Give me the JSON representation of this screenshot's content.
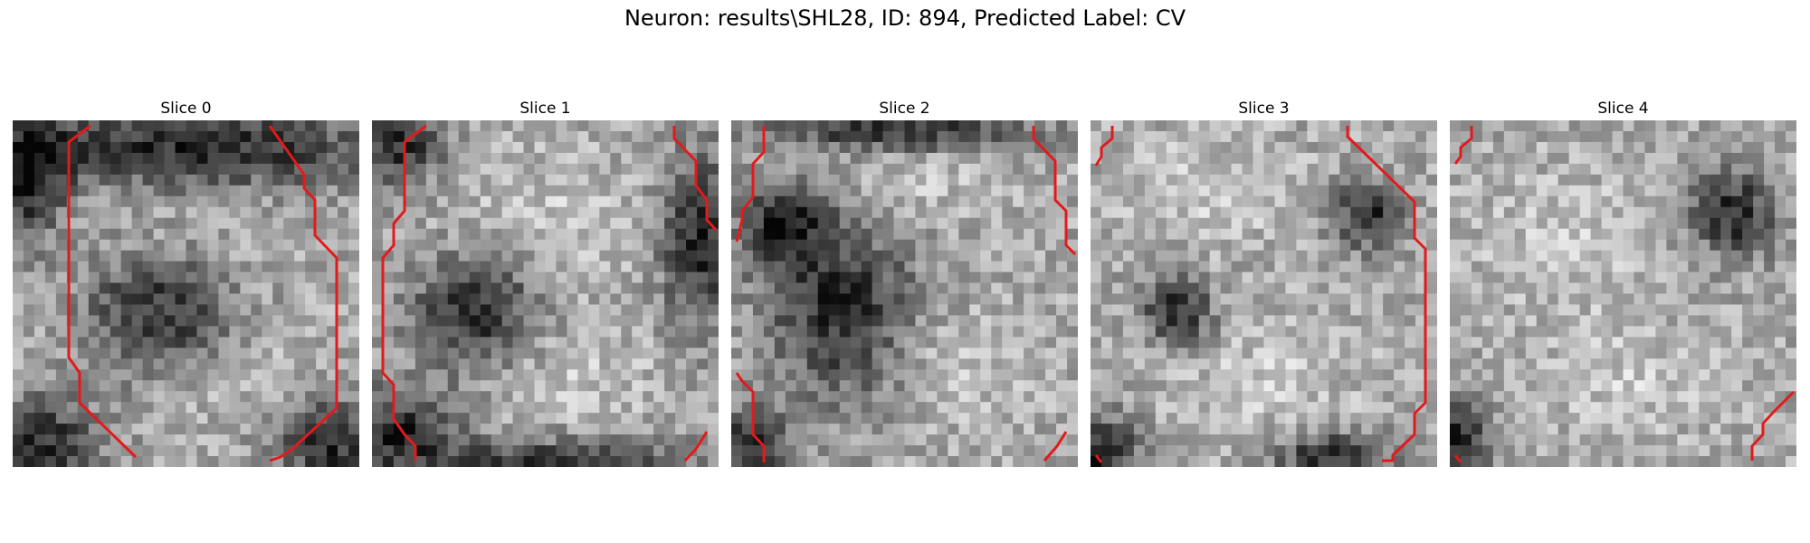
{
  "figure": {
    "title": "Neuron: results\\SHL28, ID: 894, Predicted Label: CV",
    "outline_color": "#e31a1c"
  },
  "slices": [
    {
      "label": "Slice 0",
      "seed": 11,
      "dark_regions": [
        [
          0.5,
          0.08,
          0.75,
          0.14
        ],
        [
          0.03,
          0.18,
          0.14,
          0.2
        ],
        [
          0.08,
          0.93,
          0.2,
          0.15
        ],
        [
          0.92,
          0.93,
          0.2,
          0.15
        ],
        [
          0.42,
          0.55,
          0.25,
          0.25
        ]
      ],
      "bright_regions": [
        [
          0.45,
          0.35,
          0.3,
          0.2
        ],
        [
          0.55,
          0.75,
          0.35,
          0.18
        ]
      ]
    },
    {
      "label": "Slice 1",
      "seed": 23,
      "dark_regions": [
        [
          0.07,
          0.07,
          0.16,
          0.14
        ],
        [
          0.95,
          0.35,
          0.14,
          0.3
        ],
        [
          0.08,
          0.9,
          0.2,
          0.15
        ],
        [
          0.55,
          1.0,
          0.45,
          0.1
        ],
        [
          0.3,
          0.55,
          0.22,
          0.2
        ]
      ],
      "bright_regions": [
        [
          0.5,
          0.3,
          0.35,
          0.25
        ],
        [
          0.55,
          0.75,
          0.35,
          0.2
        ]
      ]
    },
    {
      "label": "Slice 2",
      "seed": 37,
      "dark_regions": [
        [
          0.05,
          0.95,
          0.14,
          0.14
        ],
        [
          0.5,
          0.03,
          0.45,
          0.08
        ],
        [
          0.32,
          0.55,
          0.25,
          0.3
        ],
        [
          0.15,
          0.3,
          0.15,
          0.15
        ]
      ],
      "bright_regions": [
        [
          0.5,
          0.15,
          0.35,
          0.15
        ],
        [
          0.65,
          0.7,
          0.3,
          0.2
        ]
      ]
    },
    {
      "label": "Slice 3",
      "seed": 41,
      "dark_regions": [
        [
          0.8,
          0.27,
          0.12,
          0.12
        ],
        [
          0.03,
          0.97,
          0.14,
          0.14
        ],
        [
          0.25,
          0.55,
          0.12,
          0.12
        ],
        [
          0.7,
          0.97,
          0.2,
          0.08
        ]
      ],
      "bright_regions": [
        [
          0.35,
          0.2,
          0.35,
          0.2
        ],
        [
          0.5,
          0.75,
          0.35,
          0.2
        ]
      ]
    },
    {
      "label": "Slice 4",
      "seed": 53,
      "dark_regions": [
        [
          0.82,
          0.27,
          0.15,
          0.15
        ],
        [
          0.03,
          0.92,
          0.1,
          0.14
        ]
      ],
      "bright_regions": [
        [
          0.35,
          0.35,
          0.35,
          0.25
        ],
        [
          0.5,
          0.75,
          0.35,
          0.2
        ]
      ]
    }
  ]
}
